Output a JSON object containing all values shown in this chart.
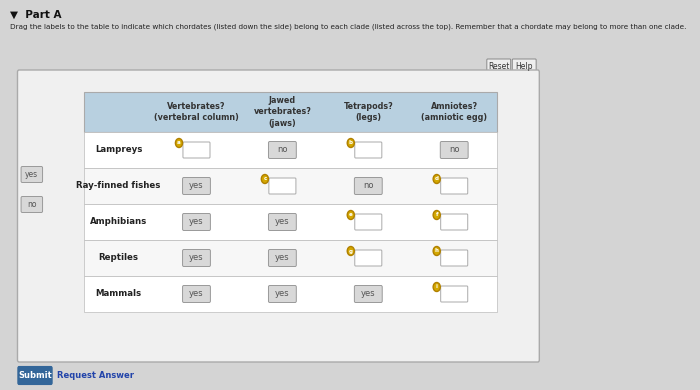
{
  "title": "Part A",
  "instruction": "Drag the labels to the table to indicate which chordates (listed down the side) belong to each clade (listed across the top). Remember that a chordate may belong to more than one clade.",
  "col_headers": [
    [
      "Vertebrates?",
      "(vertebral column)"
    ],
    [
      "Jawed",
      "vertebrates?",
      "(jaws)"
    ],
    [
      "Tetrapods?",
      "(legs)"
    ],
    [
      "Amniotes?",
      "(amniotic egg)"
    ]
  ],
  "rows": [
    {
      "label": "Lampreys",
      "values": [
        null,
        "no",
        null,
        "no"
      ],
      "letters": [
        "a",
        null,
        "b",
        null
      ]
    },
    {
      "label": "Ray-finned fishes",
      "values": [
        "yes",
        null,
        "no",
        null
      ],
      "letters": [
        null,
        "c",
        null,
        "d"
      ]
    },
    {
      "label": "Amphibians",
      "values": [
        "yes",
        "yes",
        null,
        null
      ],
      "letters": [
        null,
        null,
        "e",
        "f"
      ]
    },
    {
      "label": "Reptiles",
      "values": [
        "yes",
        "yes",
        null,
        null
      ],
      "letters": [
        null,
        null,
        "g",
        "h"
      ]
    },
    {
      "label": "Mammals",
      "values": [
        "yes",
        "yes",
        "yes",
        null
      ],
      "letters": [
        null,
        null,
        null,
        "i"
      ]
    }
  ],
  "sidebar_labels": [
    "yes",
    "no"
  ],
  "bg_outer": "#d4d4d4",
  "bg_inner": "#f0f0f0",
  "bg_header": "#b8d0e0",
  "btn_fill": "#d8d8d8",
  "btn_text": "#555555",
  "label_color": "#222222",
  "header_color": "#333333",
  "letter_circle_fill": "#d4a800",
  "letter_circle_edge": "#b08000"
}
